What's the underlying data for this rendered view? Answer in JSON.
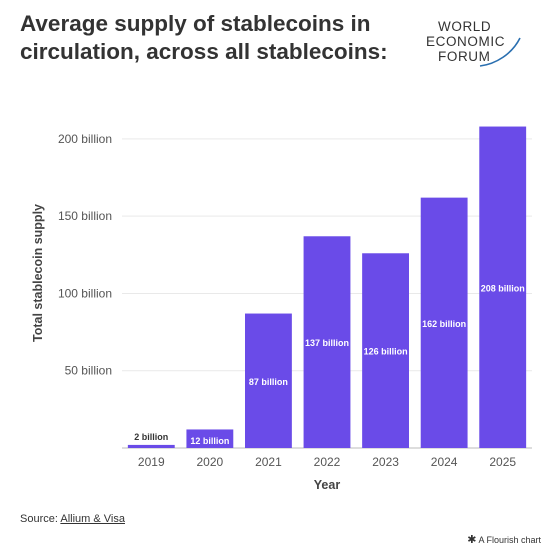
{
  "title": "Average supply of stablecoins in circulation, across all stablecoins:",
  "logo": {
    "line1": "WORLD",
    "line2": "ECONOMIC",
    "line3": "FORUM"
  },
  "source": {
    "prefix": "Source:",
    "link": "Allium & Visa"
  },
  "credit": {
    "icon": "asterisk-icon",
    "text": "A Flourish chart"
  },
  "chart_data": {
    "type": "bar",
    "categories": [
      "2019",
      "2020",
      "2021",
      "2022",
      "2023",
      "2024",
      "2025"
    ],
    "values": [
      2,
      12,
      87,
      137,
      126,
      162,
      208
    ],
    "data_labels": [
      "2 billion",
      "12 billion",
      "87 billion",
      "137 billion",
      "126 billion",
      "162 billion",
      "208 billion"
    ],
    "xlabel": "Year",
    "ylabel": "Total stablecoin supply",
    "y_ticks": [
      50,
      100,
      150,
      200
    ],
    "y_tick_labels": [
      "50 billion",
      "100 billion",
      "150 billion",
      "200 billion"
    ],
    "ylim": [
      0,
      220
    ],
    "grid": true,
    "bar_color": "#6a4be8"
  }
}
